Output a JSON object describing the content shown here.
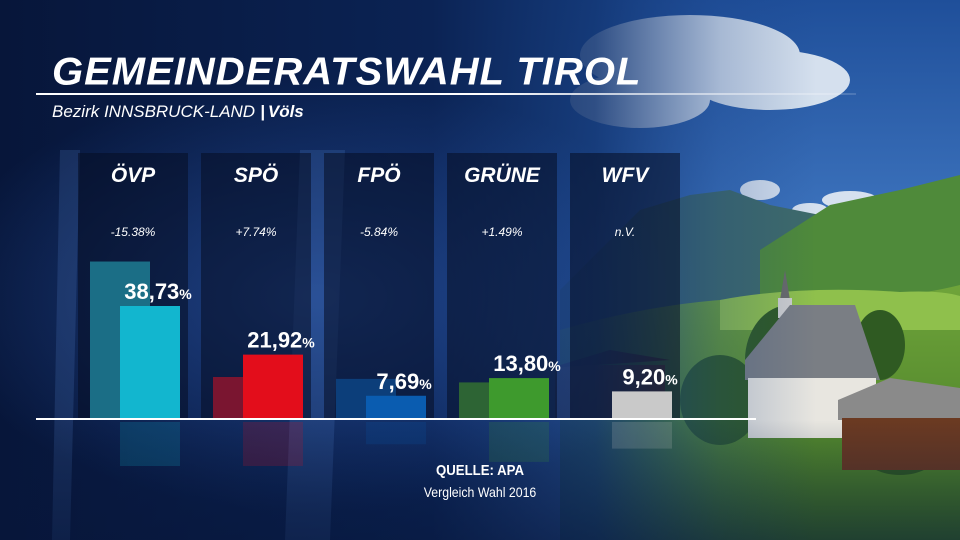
{
  "header": {
    "title": "GEMEINDERATSWAHL TIROL",
    "subtitle_district": "Bezirk INNSBRUCK-LAND",
    "subtitle_separator": "|",
    "subtitle_place": "Völs"
  },
  "footer": {
    "source": "QUELLE: APA",
    "comparison_note": "Vergleich Wahl 2016"
  },
  "chart_data": {
    "type": "bar",
    "categories": [
      "ÖVP",
      "SPÖ",
      "FPÖ",
      "GRÜNE",
      "WFV"
    ],
    "values": [
      38.73,
      21.92,
      7.69,
      13.8,
      9.2
    ],
    "value_labels": [
      "38,73",
      "21,92",
      "7,69",
      "13,80",
      "9,20"
    ],
    "value_unit": "%",
    "change_labels": [
      "-15.38%",
      "+7.74%",
      "-5.84%",
      "+1.49%",
      "n.V."
    ],
    "previous_values": [
      54.11,
      14.18,
      13.53,
      12.31,
      null
    ],
    "colors": [
      "#12b6cf",
      "#e30d1b",
      "#0a5cb0",
      "#3e9a2d",
      "#c9c9c9"
    ],
    "previous_colors": [
      "#1b6e86",
      "#7a1530",
      "#0c3e7a",
      "#2d6434",
      null
    ],
    "title": "GEMEINDERATSWAHL TIROL",
    "xlabel": "",
    "ylabel": "",
    "grid": false,
    "legend": "none"
  }
}
